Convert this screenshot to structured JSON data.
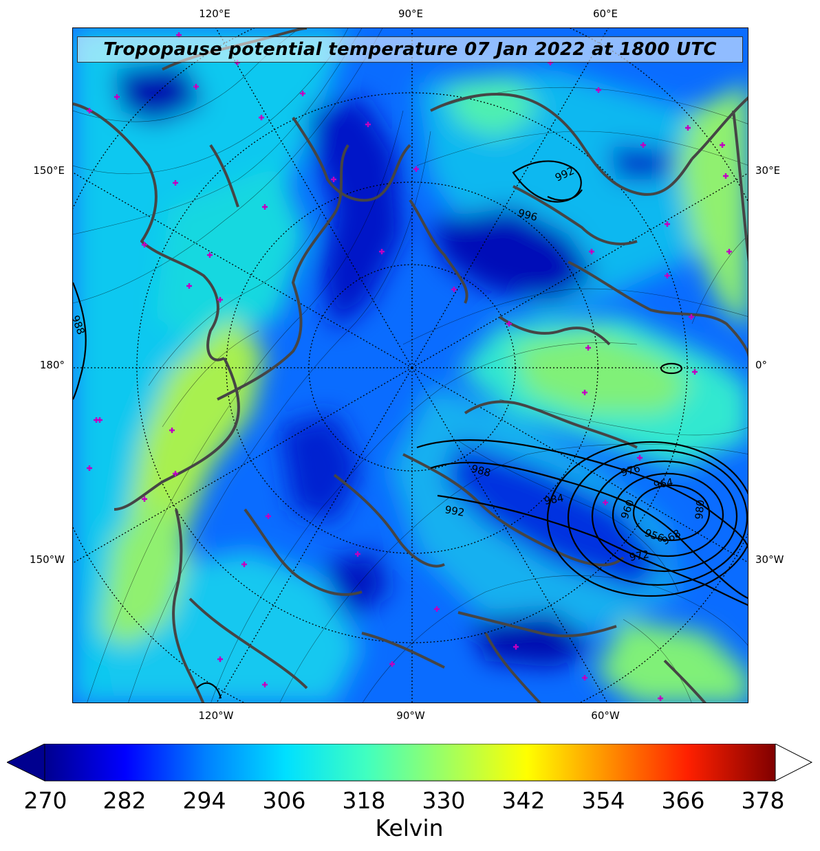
{
  "title": "Tropopause potential temperature 07 Jan 2022 at 1800 UTC",
  "longitude_labels": {
    "top": [
      "120°E",
      "90°E",
      "60°E"
    ],
    "bottom": [
      "120°W",
      "90°W",
      "60°W"
    ],
    "left": [
      "150°E",
      "180°",
      "150°W"
    ],
    "right": [
      "30°E",
      "0°",
      "30°W"
    ]
  },
  "pressure_contour_labels": [
    "992",
    "996",
    "988",
    "988",
    "984",
    "992",
    "976",
    "964",
    "960",
    "956",
    "968",
    "972",
    "980"
  ],
  "colorbar": {
    "label": "Kelvin",
    "ticks": [
      "270",
      "282",
      "294",
      "306",
      "318",
      "330",
      "342",
      "354",
      "366",
      "378"
    ],
    "colors": [
      "#00008f",
      "#0000ff",
      "#0080ff",
      "#00e0ff",
      "#40ffc0",
      "#a0ff60",
      "#ffff00",
      "#ff9000",
      "#ff2000",
      "#800000"
    ]
  },
  "map": {
    "projection": "north polar stereographic",
    "marker_color": "#c000c0",
    "coastline_color": "#404040"
  }
}
